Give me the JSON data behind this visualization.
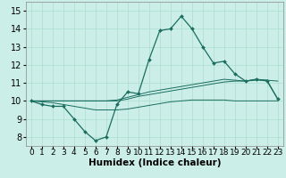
{
  "xlabel": "Humidex (Indice chaleur)",
  "background_color": "#cceee8",
  "grid_color": "#aaddcc",
  "line_color": "#1a6e60",
  "xlim": [
    -0.5,
    23.5
  ],
  "ylim": [
    7.5,
    15.5
  ],
  "xticks": [
    0,
    1,
    2,
    3,
    4,
    5,
    6,
    7,
    8,
    9,
    10,
    11,
    12,
    13,
    14,
    15,
    16,
    17,
    18,
    19,
    20,
    21,
    22,
    23
  ],
  "yticks": [
    8,
    9,
    10,
    11,
    12,
    13,
    14,
    15
  ],
  "series_main": [
    10.0,
    9.8,
    9.7,
    9.7,
    9.0,
    8.3,
    7.8,
    8.0,
    9.8,
    10.5,
    10.4,
    12.3,
    13.9,
    14.0,
    14.7,
    14.0,
    13.0,
    12.1,
    12.2,
    11.5,
    11.1,
    11.2,
    11.1,
    10.1
  ],
  "series_line2": [
    10.0,
    10.0,
    10.0,
    10.0,
    10.0,
    10.0,
    10.0,
    10.0,
    10.0,
    10.1,
    10.25,
    10.35,
    10.45,
    10.55,
    10.65,
    10.75,
    10.85,
    10.95,
    11.05,
    11.1,
    11.1,
    11.15,
    11.15,
    11.1
  ],
  "series_line3": [
    10.0,
    9.95,
    9.9,
    9.8,
    9.7,
    9.6,
    9.5,
    9.5,
    9.5,
    9.55,
    9.65,
    9.75,
    9.85,
    9.95,
    10.0,
    10.05,
    10.05,
    10.05,
    10.05,
    10.0,
    10.0,
    10.0,
    10.0,
    10.0
  ],
  "series_line4": [
    10.0,
    10.0,
    10.0,
    10.0,
    10.0,
    10.0,
    10.0,
    10.0,
    10.05,
    10.2,
    10.35,
    10.5,
    10.6,
    10.7,
    10.8,
    10.9,
    11.0,
    11.1,
    11.2,
    11.15,
    11.1,
    11.2,
    11.15,
    10.1
  ],
  "tick_fontsize": 6.5,
  "xlabel_fontsize": 7.5
}
